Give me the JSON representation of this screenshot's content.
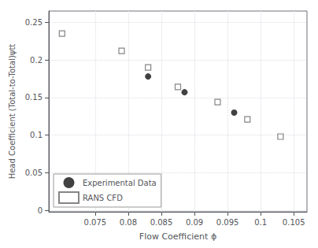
{
  "chart_data": {
    "type": "scatter",
    "xlabel": "Flow Coefficient ϕ",
    "ylabel": "Head Coefficient (Total-to-Total)ψtt",
    "xlim": [
      0.068,
      0.107
    ],
    "ylim": [
      -0.002,
      0.265
    ],
    "xticks": [
      0.075,
      0.08,
      0.085,
      0.09,
      0.095,
      0.1,
      0.105
    ],
    "yticks": [
      0,
      0.05,
      0.1,
      0.15,
      0.2,
      0.25
    ],
    "grid": true,
    "legend": "lower left",
    "series": [
      {
        "name": "Experimental Data",
        "color": "#111111",
        "marker": "circle",
        "x": [
          0.083,
          0.0885,
          0.096
        ],
        "values": [
          0.178,
          0.157,
          0.13
        ]
      },
      {
        "name": "RANS CFD",
        "color": "#666666",
        "marker": "open_square",
        "x": [
          0.07,
          0.079,
          0.083,
          0.0875,
          0.0935,
          0.098,
          0.103
        ],
        "values": [
          0.235,
          0.212,
          0.19,
          0.164,
          0.144,
          0.121,
          0.098
        ]
      }
    ]
  }
}
